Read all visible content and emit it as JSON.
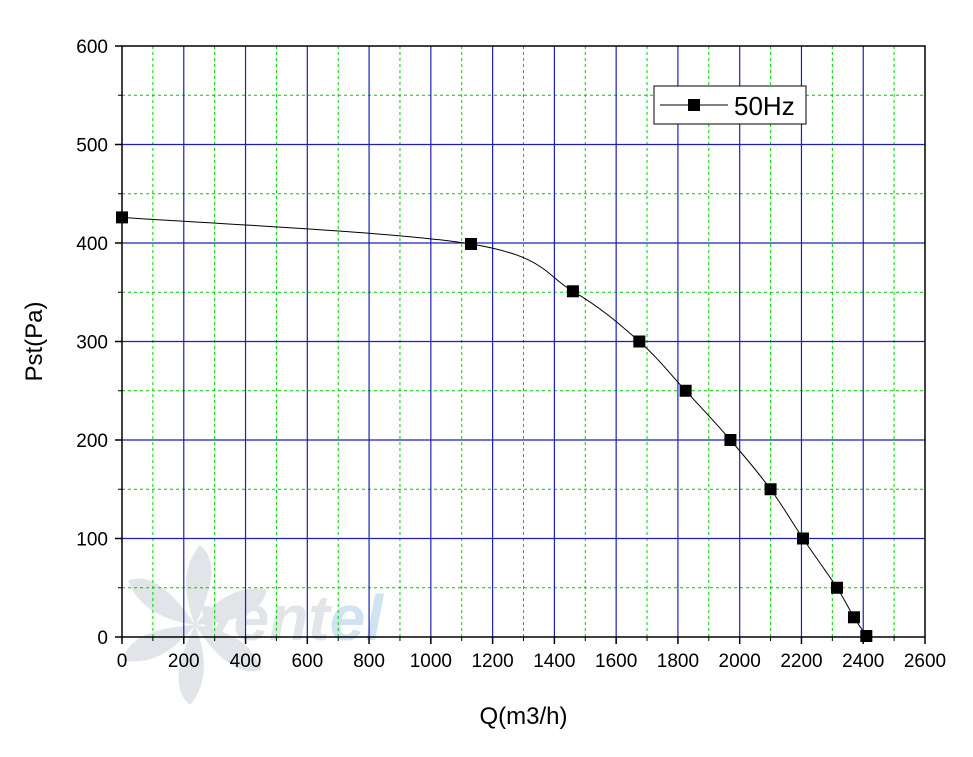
{
  "chart_data": {
    "type": "line",
    "title": "",
    "xlabel": "Q(m3/h)",
    "ylabel": "Pst(Pa)",
    "xlim": [
      0,
      2600
    ],
    "ylim": [
      0,
      600
    ],
    "x_major_ticks": [
      0,
      200,
      400,
      600,
      800,
      1000,
      1200,
      1400,
      1600,
      1800,
      2000,
      2200,
      2400,
      2600
    ],
    "x_minor_ticks": [
      100,
      300,
      500,
      700,
      900,
      1100,
      1300,
      1500,
      1700,
      1900,
      2100,
      2300,
      2500
    ],
    "y_major_ticks": [
      0,
      100,
      200,
      300,
      400,
      500,
      600
    ],
    "y_minor_ticks": [
      50,
      150,
      250,
      350,
      450,
      550
    ],
    "grid": true,
    "legend_position": "top-right",
    "series": [
      {
        "name": "50Hz",
        "marker": "square",
        "color": "#000000",
        "x": [
          0,
          1130,
          1460,
          1675,
          1825,
          1970,
          2100,
          2205,
          2315,
          2370,
          2410
        ],
        "y": [
          426,
          399,
          351,
          300,
          250,
          200,
          150,
          100,
          50,
          20,
          1
        ]
      }
    ]
  },
  "style": {
    "major_grid_color": "#1f1fb8",
    "minor_grid_color": "#00cc00",
    "axis_color": "#000000",
    "watermark_color": "#c9ced6",
    "watermark_accent": "#a9cdea"
  },
  "watermark": {
    "text_main": "vent",
    "text_accent": "el"
  }
}
